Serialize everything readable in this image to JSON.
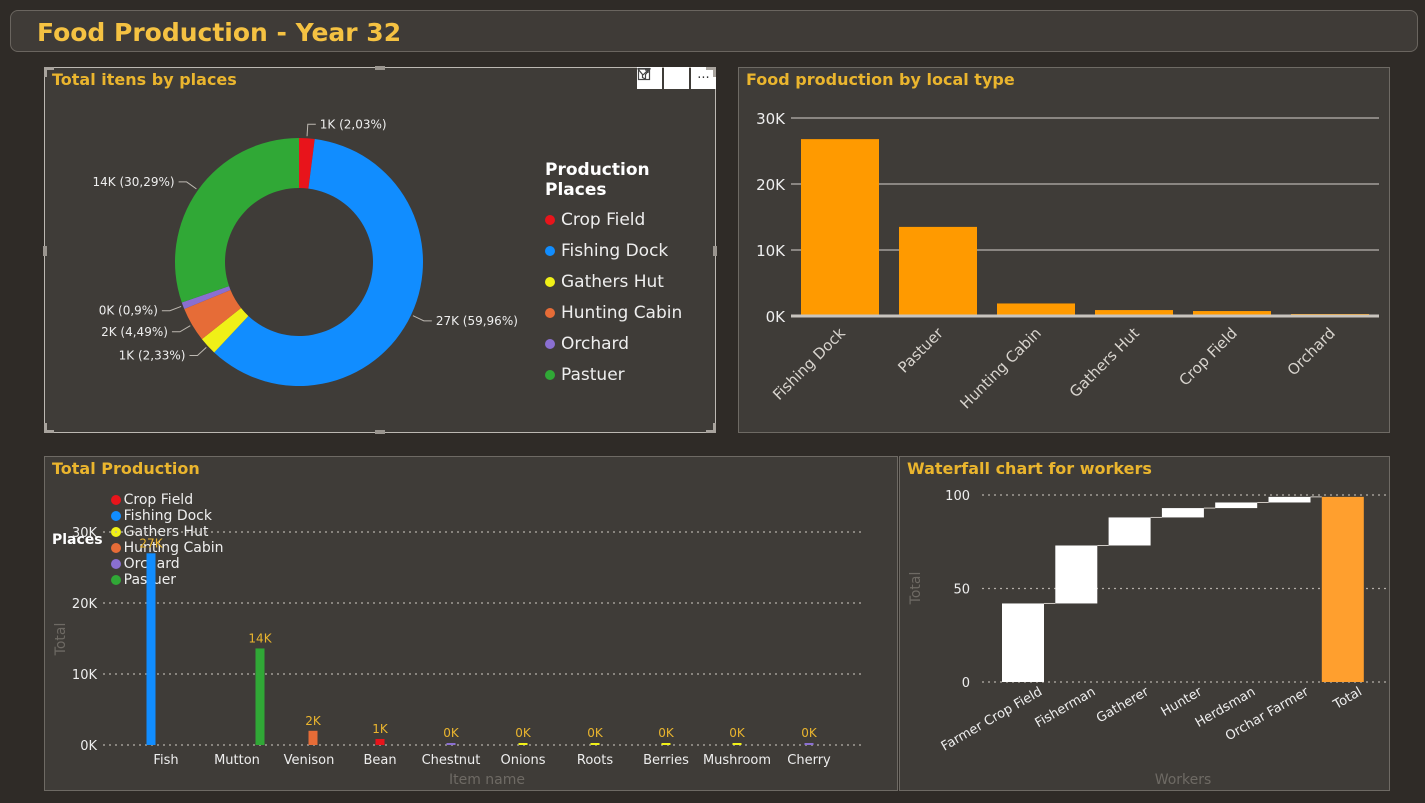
{
  "page": {
    "title": "Food Production - Year 32"
  },
  "toolbar": {
    "filter_icon": "filter-icon",
    "focus_icon": "focus-mode-icon",
    "more_label": "···"
  },
  "colors": {
    "Crop Field": "#e8141b",
    "Fishing Dock": "#118dff",
    "Gathers Hut": "#f0f017",
    "Hunting Cabin": "#e66c37",
    "Orchard": "#8a6fd1",
    "Pastuer": "#30a836",
    "bar_orange": "#ff9a00",
    "waterfall_up": "#ffffff",
    "waterfall_total": "#ff9f2e",
    "accent_title": "#eab52e"
  },
  "chart_data": [
    {
      "type": "pie",
      "variant": "donut",
      "title": "Total itens by places",
      "legend_title": "Production Places",
      "legend_placement": "right",
      "slices": [
        {
          "name": "Crop Field",
          "value": 1000,
          "label": "1K (2,03%)",
          "percent": 2.03
        },
        {
          "name": "Fishing Dock",
          "value": 27000,
          "label": "27K (59,96%)",
          "percent": 59.96
        },
        {
          "name": "Gathers Hut",
          "value": 1000,
          "label": "1K (2,33%)",
          "percent": 2.33
        },
        {
          "name": "Hunting Cabin",
          "value": 2000,
          "label": "2K (4,49%)",
          "percent": 4.49
        },
        {
          "name": "Orchard",
          "value": 0,
          "label": "0K (0,9%)",
          "percent": 0.9
        },
        {
          "name": "Pastuer",
          "value": 14000,
          "label": "14K (30,29%)",
          "percent": 30.29
        }
      ]
    },
    {
      "type": "bar",
      "title": "Food production by local type",
      "categories": [
        "Fishing Dock",
        "Pastuer",
        "Hunting Cabin",
        "Gathers Hut",
        "Crop Field",
        "Orchard"
      ],
      "values": [
        26800,
        13500,
        1900,
        900,
        750,
        300
      ],
      "ylim": [
        0,
        30000
      ],
      "yticks": [
        0,
        10000,
        20000,
        30000
      ],
      "ytick_labels": [
        "0K",
        "10K",
        "20K",
        "30K"
      ],
      "grid": true
    },
    {
      "type": "bar",
      "title": "Total Production",
      "legend_title": "Places",
      "legend_placement": "top-left",
      "xlabel": "Item name",
      "ylabel": "Total",
      "ylim": [
        0,
        30000
      ],
      "yticks": [
        0,
        10000,
        20000,
        30000
      ],
      "ytick_labels": [
        "0K",
        "10K",
        "20K",
        "30K"
      ],
      "grid": true,
      "categories": [
        "Fish",
        "Mutton",
        "Venison",
        "Bean",
        "Chestnut",
        "Onions",
        "Roots",
        "Berries",
        "Mushroom",
        "Cherry"
      ],
      "bars": [
        {
          "category": "Fish",
          "place": "Fishing Dock",
          "value": 27000,
          "label": "27K"
        },
        {
          "category": "Mutton",
          "place": "Pastuer",
          "value": 13600,
          "label": "14K"
        },
        {
          "category": "Venison",
          "place": "Hunting Cabin",
          "value": 2000,
          "label": "2K"
        },
        {
          "category": "Bean",
          "place": "Crop Field",
          "value": 850,
          "label": "1K"
        },
        {
          "category": "Chestnut",
          "place": "Orchard",
          "value": 200,
          "label": "0K"
        },
        {
          "category": "Onions",
          "place": "Gathers Hut",
          "value": 250,
          "label": "0K"
        },
        {
          "category": "Roots",
          "place": "Gathers Hut",
          "value": 250,
          "label": "0K"
        },
        {
          "category": "Berries",
          "place": "Gathers Hut",
          "value": 250,
          "label": "0K"
        },
        {
          "category": "Mushroom",
          "place": "Gathers Hut",
          "value": 250,
          "label": "0K"
        },
        {
          "category": "Cherry",
          "place": "Orchard",
          "value": 100,
          "label": "0K"
        }
      ]
    },
    {
      "type": "bar",
      "variant": "waterfall",
      "title": "Waterfall chart for workers",
      "xlabel": "Workers",
      "ylabel": "Total",
      "ylim": [
        0,
        100
      ],
      "yticks": [
        0,
        50,
        100
      ],
      "ytick_labels": [
        "0",
        "50",
        "100"
      ],
      "grid": true,
      "categories": [
        "Farmer Crop Field",
        "Fisherman",
        "Gatherer",
        "Hunter",
        "Herdsman",
        "Orchar Farmer",
        "Total"
      ],
      "values": [
        42,
        31,
        15,
        5,
        3,
        3,
        99
      ]
    }
  ]
}
